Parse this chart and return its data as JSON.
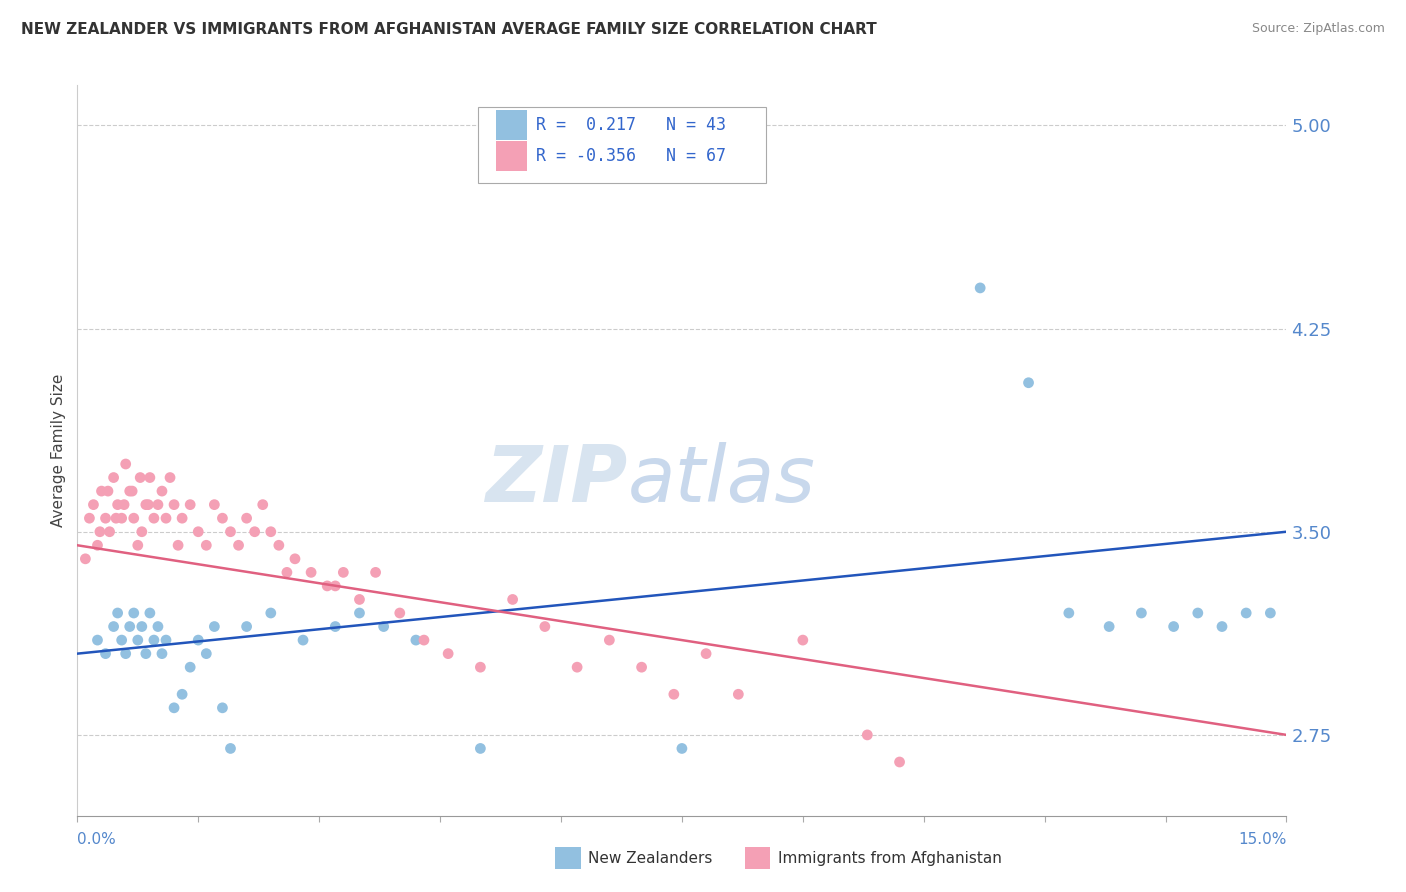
{
  "title": "NEW ZEALANDER VS IMMIGRANTS FROM AFGHANISTAN AVERAGE FAMILY SIZE CORRELATION CHART",
  "source": "Source: ZipAtlas.com",
  "ylabel": "Average Family Size",
  "yticks_right": [
    2.75,
    3.5,
    4.25,
    5.0
  ],
  "xmin": 0.0,
  "xmax": 15.0,
  "ymin": 2.45,
  "ymax": 5.15,
  "blue_color": "#92c0e0",
  "pink_color": "#f4a0b5",
  "line_blue": "#2255bb",
  "line_pink": "#e06080",
  "nz_x": [
    0.25,
    0.35,
    0.45,
    0.5,
    0.55,
    0.6,
    0.65,
    0.7,
    0.75,
    0.8,
    0.85,
    0.9,
    0.95,
    1.0,
    1.05,
    1.1,
    1.2,
    1.3,
    1.4,
    1.5,
    1.6,
    1.7,
    1.8,
    1.9,
    2.1,
    2.4,
    2.8,
    3.2,
    3.5,
    3.8,
    4.2,
    5.0,
    7.5,
    11.2,
    11.8,
    12.3,
    12.8,
    13.2,
    13.6,
    13.9,
    14.2,
    14.5,
    14.8
  ],
  "nz_y": [
    3.1,
    3.05,
    3.15,
    3.2,
    3.1,
    3.05,
    3.15,
    3.2,
    3.1,
    3.15,
    3.05,
    3.2,
    3.1,
    3.15,
    3.05,
    3.1,
    2.85,
    2.9,
    3.0,
    3.1,
    3.05,
    3.15,
    2.85,
    2.7,
    3.15,
    3.2,
    3.1,
    3.15,
    3.2,
    3.15,
    3.1,
    2.7,
    2.7,
    4.4,
    4.05,
    3.2,
    3.15,
    3.2,
    3.15,
    3.2,
    3.15,
    3.2,
    3.2
  ],
  "afg_x": [
    0.1,
    0.15,
    0.2,
    0.25,
    0.3,
    0.35,
    0.4,
    0.45,
    0.5,
    0.55,
    0.6,
    0.65,
    0.7,
    0.75,
    0.8,
    0.85,
    0.9,
    0.95,
    1.0,
    1.05,
    1.1,
    1.15,
    1.2,
    1.25,
    1.3,
    1.4,
    1.5,
    1.6,
    1.7,
    1.8,
    1.9,
    2.0,
    2.1,
    2.2,
    2.3,
    2.4,
    2.5,
    2.7,
    2.9,
    3.1,
    3.3,
    3.5,
    3.7,
    4.0,
    4.3,
    4.6,
    5.0,
    5.4,
    5.8,
    6.2,
    6.6,
    7.0,
    7.4,
    7.8,
    8.2,
    9.0,
    9.8,
    10.2,
    0.28,
    0.38,
    0.48,
    0.58,
    0.68,
    0.78,
    0.88,
    2.6,
    3.2
  ],
  "afg_y": [
    3.4,
    3.55,
    3.6,
    3.45,
    3.65,
    3.55,
    3.5,
    3.7,
    3.6,
    3.55,
    3.75,
    3.65,
    3.55,
    3.45,
    3.5,
    3.6,
    3.7,
    3.55,
    3.6,
    3.65,
    3.55,
    3.7,
    3.6,
    3.45,
    3.55,
    3.6,
    3.5,
    3.45,
    3.6,
    3.55,
    3.5,
    3.45,
    3.55,
    3.5,
    3.6,
    3.5,
    3.45,
    3.4,
    3.35,
    3.3,
    3.35,
    3.25,
    3.35,
    3.2,
    3.1,
    3.05,
    3.0,
    3.25,
    3.15,
    3.0,
    3.1,
    3.0,
    2.9,
    3.05,
    2.9,
    3.1,
    2.75,
    2.65,
    3.5,
    3.65,
    3.55,
    3.6,
    3.65,
    3.7,
    3.6,
    3.35,
    3.3
  ]
}
